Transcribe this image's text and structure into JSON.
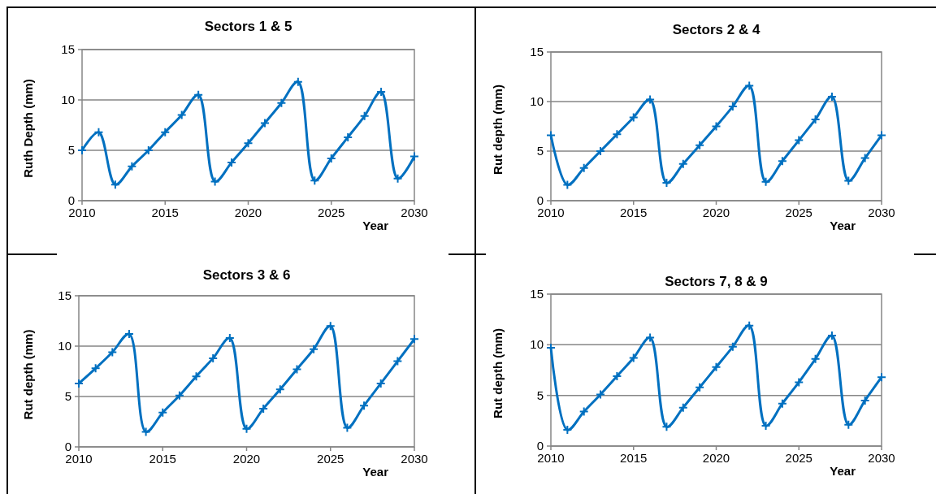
{
  "chart_data": [
    {
      "type": "line",
      "title": "Sectors 1 & 5",
      "xlabel": "Year",
      "ylabel": "Ruth Depth (mm)",
      "x": [
        2010,
        2011,
        2012,
        2013,
        2014,
        2015,
        2016,
        2017,
        2018,
        2019,
        2020,
        2021,
        2022,
        2023,
        2024,
        2025,
        2026,
        2027,
        2028,
        2029,
        2030
      ],
      "series": [
        {
          "color": "#0070c0",
          "values": [
            5.0,
            6.8,
            1.6,
            3.4,
            5.0,
            6.8,
            8.5,
            10.5,
            1.9,
            3.8,
            5.7,
            7.7,
            9.7,
            11.8,
            2.0,
            4.2,
            6.3,
            8.4,
            10.8,
            2.2,
            4.4
          ]
        }
      ],
      "xlim": [
        2010,
        2030
      ],
      "xticks": [
        2010,
        2015,
        2020,
        2025,
        2030
      ],
      "ylim": [
        0,
        15
      ],
      "yticks": [
        0,
        5,
        10,
        15
      ],
      "grid": "y",
      "marker": "cross",
      "line_style": "solid"
    },
    {
      "type": "line",
      "title": "Sectors 2 & 4",
      "xlabel": "Year",
      "ylabel": "Rut depth (mm)",
      "x": [
        2010,
        2011,
        2012,
        2013,
        2014,
        2015,
        2016,
        2017,
        2018,
        2019,
        2020,
        2021,
        2022,
        2023,
        2024,
        2025,
        2026,
        2027,
        2028,
        2029,
        2030
      ],
      "series": [
        {
          "color": "#0070c0",
          "values": [
            6.6,
            1.6,
            3.3,
            5.0,
            6.7,
            8.4,
            10.2,
            1.8,
            3.7,
            5.6,
            7.5,
            9.5,
            11.6,
            1.9,
            4.0,
            6.1,
            8.2,
            10.5,
            2.0,
            4.3,
            6.6
          ]
        }
      ],
      "xlim": [
        2010,
        2030
      ],
      "xticks": [
        2010,
        2015,
        2020,
        2025,
        2030
      ],
      "ylim": [
        0,
        15
      ],
      "yticks": [
        0,
        5,
        10,
        15
      ],
      "grid": "y",
      "marker": "cross",
      "line_style": "solid"
    },
    {
      "type": "line",
      "title": "Sectors 3 & 6",
      "xlabel": "Year",
      "ylabel": "Rut depth (mm)",
      "x": [
        2010,
        2011,
        2012,
        2013,
        2014,
        2015,
        2016,
        2017,
        2018,
        2019,
        2020,
        2021,
        2022,
        2023,
        2024,
        2025,
        2026,
        2027,
        2028,
        2029,
        2030
      ],
      "series": [
        {
          "color": "#0070c0",
          "values": [
            6.3,
            7.8,
            9.4,
            11.2,
            1.5,
            3.4,
            5.1,
            7.0,
            8.8,
            10.8,
            1.8,
            3.8,
            5.7,
            7.7,
            9.7,
            12.0,
            1.9,
            4.1,
            6.3,
            8.5,
            10.7
          ]
        }
      ],
      "xlim": [
        2010,
        2030
      ],
      "xticks": [
        2010,
        2015,
        2020,
        2025,
        2030
      ],
      "ylim": [
        0,
        15
      ],
      "yticks": [
        0,
        5,
        10,
        15
      ],
      "grid": "y",
      "marker": "cross",
      "line_style": "solid"
    },
    {
      "type": "line",
      "title": "Sectors 7, 8 & 9",
      "xlabel": "Year",
      "ylabel": "Rut depth (mm)",
      "x": [
        2010,
        2011,
        2012,
        2013,
        2014,
        2015,
        2016,
        2017,
        2018,
        2019,
        2020,
        2021,
        2022,
        2023,
        2024,
        2025,
        2026,
        2027,
        2028,
        2029,
        2030
      ],
      "series": [
        {
          "color": "#0070c0",
          "values": [
            9.7,
            1.6,
            3.4,
            5.1,
            6.9,
            8.7,
            10.7,
            1.9,
            3.8,
            5.8,
            7.8,
            9.8,
            11.9,
            2.0,
            4.2,
            6.3,
            8.6,
            10.9,
            2.1,
            4.5,
            6.8
          ]
        }
      ],
      "xlim": [
        2010,
        2030
      ],
      "xticks": [
        2010,
        2015,
        2020,
        2025,
        2030
      ],
      "ylim": [
        0,
        15
      ],
      "yticks": [
        0,
        5,
        10,
        15
      ],
      "grid": "y",
      "marker": "cross",
      "line_style": "solid"
    }
  ]
}
